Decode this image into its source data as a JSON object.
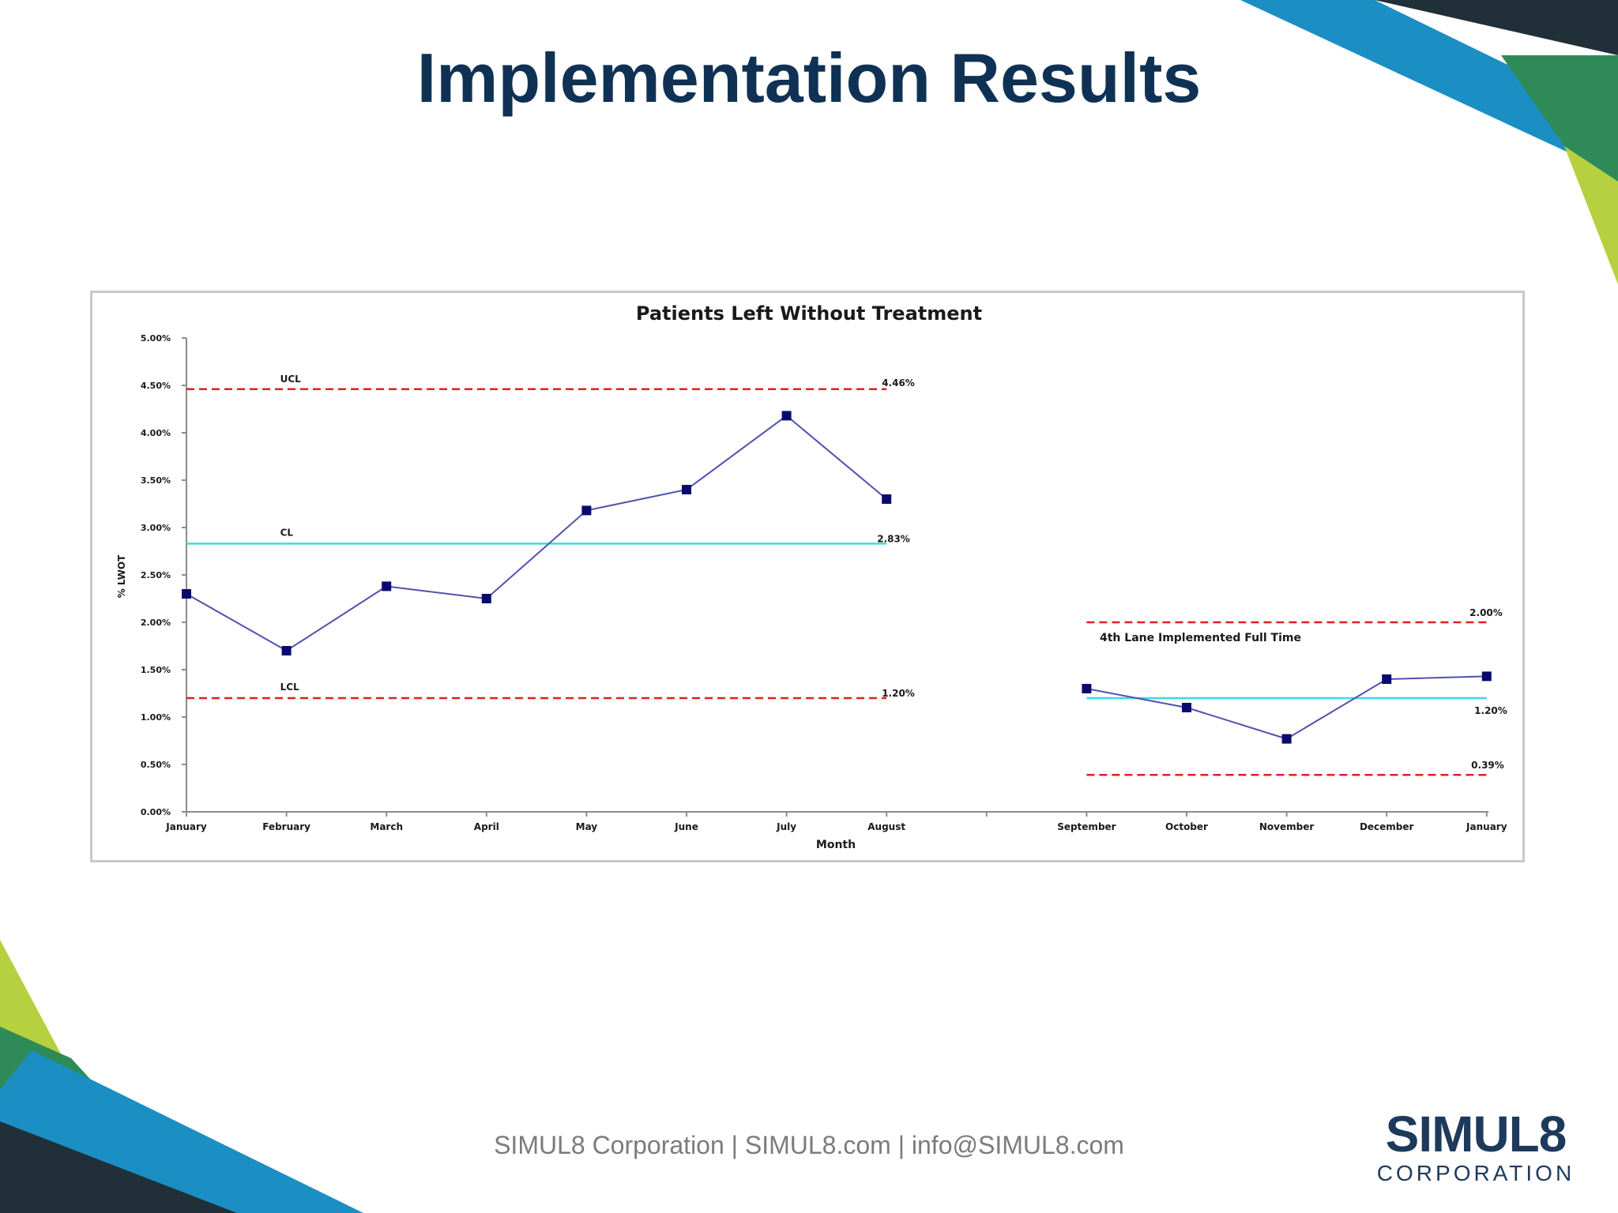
{
  "slide": {
    "title": "Implementation Results",
    "footer": "SIMUL8 Corporation  |  SIMUL8.com  | info@SIMUL8.com",
    "logo_main": "SIMUL8",
    "logo_sub": "CORPORATION"
  },
  "colors": {
    "title": "#0f3254",
    "series_line": "#5050b0",
    "series_marker": "#0a0a6e",
    "control_limits": "#e02020",
    "center_line": "#3fd8e8",
    "decor_green": "#2e8b57",
    "decor_blue": "#1b8fc4",
    "decor_lime": "#b6d040",
    "decor_dark": "#213038"
  },
  "chart_data": {
    "type": "line",
    "title": "Patients Left Without Treatment",
    "xlabel": "Month",
    "ylabel": "% LWOT",
    "ylim": [
      0,
      5
    ],
    "y_ticks": [
      "0.00%",
      "0.50%",
      "1.00%",
      "1.50%",
      "2.00%",
      "2.50%",
      "3.00%",
      "3.50%",
      "4.00%",
      "4.50%",
      "5.00%"
    ],
    "categories": [
      "January",
      "February",
      "March",
      "April",
      "May",
      "June",
      "July",
      "August",
      "",
      "September",
      "October",
      "November",
      "December",
      "January"
    ],
    "series": [
      {
        "values": [
          2.3,
          1.7,
          2.38,
          2.25,
          3.18,
          3.4,
          4.18,
          3.3,
          null,
          1.3,
          1.1,
          0.77,
          1.4,
          1.43
        ]
      }
    ],
    "control_segments": [
      {
        "start": 0,
        "end": 7,
        "ucl": 4.46,
        "cl": 2.83,
        "lcl": 1.2,
        "ucl_label": "4.46%",
        "cl_label": "2.83%",
        "lcl_label": "1.20%",
        "ucl_name": "UCL",
        "cl_name": "CL",
        "lcl_name": "LCL"
      },
      {
        "start": 9,
        "end": 13,
        "ucl": 2.0,
        "cl": 1.2,
        "lcl": 0.39,
        "ucl_label": "2.00%",
        "cl_label": "1.20%",
        "lcl_label": "0.39%"
      }
    ],
    "annotations": [
      "4th Lane Implemented Full Time"
    ],
    "grid": false,
    "legend": "none"
  }
}
